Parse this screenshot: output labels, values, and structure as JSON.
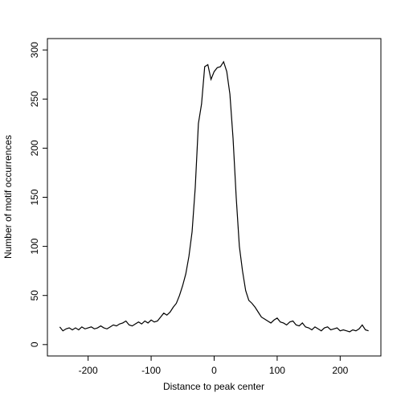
{
  "chart_data": {
    "type": "line",
    "xlabel": "Distance to peak center",
    "ylabel": "Number of motif occurrences",
    "x": [
      -245,
      -240,
      -235,
      -230,
      -225,
      -220,
      -215,
      -210,
      -205,
      -200,
      -195,
      -190,
      -185,
      -180,
      -175,
      -170,
      -165,
      -160,
      -155,
      -150,
      -145,
      -140,
      -135,
      -130,
      -125,
      -120,
      -115,
      -110,
      -105,
      -100,
      -95,
      -90,
      -85,
      -80,
      -75,
      -70,
      -65,
      -60,
      -55,
      -50,
      -45,
      -40,
      -35,
      -30,
      -25,
      -20,
      -15,
      -10,
      -5,
      0,
      5,
      10,
      15,
      20,
      25,
      30,
      35,
      40,
      45,
      50,
      55,
      60,
      65,
      70,
      75,
      80,
      85,
      90,
      95,
      100,
      105,
      110,
      115,
      120,
      125,
      130,
      135,
      140,
      145,
      150,
      155,
      160,
      165,
      170,
      175,
      180,
      185,
      190,
      195,
      200,
      205,
      210,
      215,
      220,
      225,
      230,
      235,
      240,
      245
    ],
    "series": [
      {
        "color": "#000000",
        "values": [
          18,
          14,
          16,
          17,
          15,
          17,
          15,
          18,
          16,
          17,
          18,
          16,
          17,
          19,
          17,
          16,
          18,
          20,
          19,
          21,
          22,
          24,
          20,
          19,
          21,
          23,
          21,
          24,
          22,
          25,
          23,
          24,
          28,
          32,
          30,
          33,
          38,
          42,
          50,
          60,
          72,
          90,
          115,
          160,
          225,
          245,
          283,
          285,
          270,
          278,
          282,
          283,
          288,
          278,
          255,
          210,
          150,
          100,
          75,
          55,
          45,
          42,
          38,
          33,
          28,
          26,
          24,
          22,
          25,
          27,
          23,
          22,
          20,
          23,
          24,
          20,
          19,
          22,
          18,
          17,
          15,
          18,
          16,
          14,
          17,
          18,
          15,
          16,
          17,
          14,
          15,
          14,
          13,
          15,
          14,
          16,
          20,
          15,
          14
        ]
      }
    ],
    "xlim": [
      -264.6,
      264.6
    ],
    "ylim": [
      -11.6,
      311.6
    ],
    "xticks": [
      -200,
      -100,
      0,
      100,
      200
    ],
    "yticks": [
      0,
      50,
      100,
      150,
      200,
      250,
      300
    ]
  }
}
